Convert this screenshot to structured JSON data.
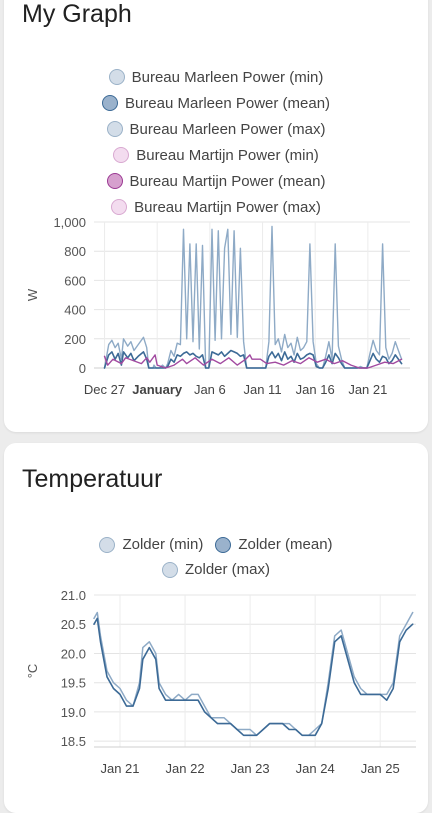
{
  "cards": [
    {
      "title": "My Graph",
      "legend": [
        {
          "label": "Bureau Marleen Power (min)",
          "fill": "#d3dde8",
          "stroke": "#9bb2c8"
        },
        {
          "label": "Bureau Marleen Power (mean)",
          "fill": "#9ab2cc",
          "stroke": "#3c6a96"
        },
        {
          "label": "Bureau Marleen Power (max)",
          "fill": "#d3dde8",
          "stroke": "#9bb2c8"
        },
        {
          "label": "Bureau Martijn Power (min)",
          "fill": "#f3dcef",
          "stroke": "#d9a9d1"
        },
        {
          "label": "Bureau Martijn Power (mean)",
          "fill": "#d6a0ce",
          "stroke": "#9b3a93"
        },
        {
          "label": "Bureau Martijn Power (max)",
          "fill": "#f3dcef",
          "stroke": "#d9a9d1"
        }
      ]
    },
    {
      "title": "Temperatuur",
      "legend": [
        {
          "label": "Zolder (min)",
          "fill": "#d3dde8",
          "stroke": "#9bb2c8"
        },
        {
          "label": "Zolder (mean)",
          "fill": "#9ab2cc",
          "stroke": "#3c6a96"
        },
        {
          "label": "Zolder (max)",
          "fill": "#d3dde8",
          "stroke": "#9bb2c8"
        }
      ]
    }
  ],
  "chart_data": [
    {
      "type": "line",
      "title": "My Graph",
      "xlabel": "",
      "ylabel": "W",
      "ylim": [
        0,
        1000
      ],
      "yticks": [
        0,
        200,
        400,
        600,
        800,
        1000
      ],
      "ytick_labels": [
        "0",
        "200",
        "400",
        "600",
        "800",
        "1,000"
      ],
      "xlim": [
        -1,
        29
      ],
      "xticks": [
        0,
        5,
        10,
        15,
        20,
        25
      ],
      "xtick_labels": [
        "Dec 27",
        "January",
        "Jan 6",
        "Jan 11",
        "Jan 16",
        "Jan 21"
      ],
      "xtick_bold": [
        false,
        true,
        false,
        false,
        false,
        false
      ],
      "grid": true,
      "series": [
        {
          "name": "Bureau Marleen Power (max)",
          "color": "#8eaac6",
          "width": 1.4,
          "x": [
            0,
            0.4,
            0.7,
            1.0,
            1.3,
            1.6,
            1.8,
            2.2,
            2.5,
            2.8,
            3.2,
            3.7,
            4.0,
            4.2,
            4.6,
            4.7,
            4.9,
            5.2,
            5.5,
            5.8,
            6.0,
            6.3,
            6.6,
            6.9,
            7.2,
            7.5,
            7.8,
            8.1,
            8.4,
            8.7,
            9.0,
            9.3,
            9.6,
            9.9,
            10.2,
            10.5,
            10.8,
            11.1,
            11.4,
            11.7,
            12.0,
            12.3,
            12.6,
            12.9,
            13.2,
            13.5,
            13.8,
            14.1,
            14.4,
            14.7,
            15.0,
            15.3,
            15.6,
            15.9,
            16.2,
            16.5,
            16.8,
            17.1,
            17.4,
            17.7,
            18.0,
            18.3,
            18.6,
            18.9,
            19.2,
            19.5,
            19.8,
            20.1,
            20.4,
            20.7,
            21.0,
            21.3,
            21.6,
            21.9,
            22.2,
            22.5,
            22.8,
            23.1,
            23.4,
            23.7,
            24.0,
            24.3,
            24.6,
            24.9,
            25.2,
            25.5,
            25.8,
            26.1,
            26.4,
            26.7,
            27.0,
            27.3,
            27.6,
            27.9,
            28.2
          ],
          "y": [
            0,
            160,
            190,
            140,
            170,
            60,
            200,
            150,
            180,
            120,
            160,
            210,
            140,
            0,
            0,
            20,
            0,
            0,
            20,
            0,
            30,
            120,
            80,
            170,
            160,
            950,
            200,
            850,
            180,
            850,
            130,
            840,
            0,
            0,
            950,
            190,
            940,
            200,
            820,
            950,
            230,
            940,
            210,
            820,
            180,
            0,
            0,
            0,
            0,
            0,
            0,
            0,
            180,
            970,
            160,
            200,
            110,
            230,
            140,
            170,
            90,
            210,
            120,
            140,
            180,
            850,
            180,
            30,
            0,
            0,
            80,
            180,
            60,
            850,
            150,
            60,
            0,
            0,
            0,
            0,
            0,
            10,
            0,
            0,
            100,
            190,
            120,
            90,
            850,
            140,
            60,
            100,
            180,
            120,
            60
          ]
        },
        {
          "name": "Bureau Marleen Power (mean)",
          "color": "#3c6a96",
          "width": 1.6,
          "x": [
            0,
            0.4,
            0.7,
            1.0,
            1.3,
            1.6,
            1.8,
            2.2,
            2.5,
            2.8,
            3.2,
            3.7,
            4.0,
            4.2,
            4.6,
            4.7,
            4.9,
            5.2,
            5.5,
            5.8,
            6.0,
            6.3,
            6.6,
            6.9,
            7.2,
            7.5,
            7.8,
            8.1,
            8.4,
            8.7,
            9.0,
            9.3,
            9.6,
            9.9,
            10.2,
            10.5,
            10.8,
            11.1,
            11.4,
            11.7,
            12.0,
            12.3,
            12.6,
            12.9,
            13.2,
            13.5,
            13.8,
            14.1,
            14.4,
            14.7,
            15.0,
            15.3,
            15.6,
            15.9,
            16.2,
            16.5,
            16.8,
            17.1,
            17.4,
            17.7,
            18.0,
            18.3,
            18.6,
            18.9,
            19.2,
            19.5,
            19.8,
            20.1,
            20.4,
            20.7,
            21.0,
            21.3,
            21.6,
            21.9,
            22.2,
            22.5,
            22.8,
            23.1,
            23.4,
            23.7,
            24.0,
            24.3,
            24.6,
            24.9,
            25.2,
            25.5,
            25.8,
            26.1,
            26.4,
            26.7,
            27.0,
            27.3,
            27.6,
            27.9,
            28.2
          ],
          "y": [
            0,
            90,
            110,
            60,
            100,
            20,
            110,
            70,
            100,
            50,
            80,
            110,
            60,
            0,
            0,
            0,
            0,
            0,
            0,
            0,
            10,
            60,
            40,
            90,
            80,
            100,
            110,
            90,
            100,
            80,
            70,
            90,
            0,
            0,
            110,
            100,
            90,
            110,
            80,
            100,
            120,
            110,
            100,
            80,
            90,
            0,
            0,
            0,
            0,
            0,
            0,
            0,
            80,
            110,
            70,
            100,
            50,
            110,
            60,
            80,
            40,
            100,
            60,
            70,
            90,
            100,
            90,
            10,
            0,
            0,
            40,
            90,
            30,
            100,
            70,
            30,
            0,
            0,
            0,
            0,
            0,
            0,
            0,
            0,
            50,
            100,
            60,
            40,
            80,
            70,
            30,
            50,
            90,
            60,
            30
          ]
        },
        {
          "name": "Bureau Martijn Power (mean)",
          "color": "#a24aa0",
          "width": 1.4,
          "x": [
            0,
            0.3,
            0.8,
            1.6,
            2.0,
            3.5,
            4.0,
            4.3,
            4.8,
            5.0,
            5.8,
            6.6,
            7.4,
            7.8,
            8.6,
            9.4,
            10.2,
            11.0,
            11.8,
            12.6,
            13.4,
            13.8,
            14.0,
            14.8,
            15.4,
            16.2,
            17.0,
            17.8,
            18.6,
            19.4,
            20.2,
            21.0,
            21.8,
            22.6,
            23.4,
            24.2,
            25.0,
            25.8,
            26.6,
            27.4,
            28.2
          ],
          "y": [
            80,
            20,
            60,
            30,
            70,
            30,
            70,
            40,
            90,
            20,
            0,
            20,
            60,
            30,
            70,
            20,
            60,
            30,
            70,
            20,
            60,
            90,
            60,
            60,
            30,
            40,
            20,
            50,
            30,
            70,
            40,
            60,
            30,
            50,
            20,
            0,
            0,
            20,
            40,
            30,
            60
          ]
        }
      ]
    },
    {
      "type": "line",
      "title": "Temperatuur",
      "xlabel": "",
      "ylabel": "°C",
      "ylim": [
        18.4,
        21.0
      ],
      "yticks": [
        18.5,
        19.0,
        19.5,
        20.0,
        20.5,
        21.0
      ],
      "ytick_labels": [
        "18.5",
        "19.0",
        "19.5",
        "20.0",
        "20.5",
        "21.0"
      ],
      "xlim": [
        20.6,
        25.55
      ],
      "xticks": [
        21,
        22,
        23,
        24,
        25
      ],
      "xtick_labels": [
        "Jan 21",
        "Jan 22",
        "Jan 23",
        "Jan 24",
        "Jan 25"
      ],
      "xtick_bold": [
        false,
        false,
        false,
        false,
        false
      ],
      "grid": true,
      "series": [
        {
          "name": "Zolder (max)",
          "color": "#8eaac6",
          "width": 1.5,
          "x": [
            20.6,
            20.65,
            20.7,
            20.8,
            20.9,
            21.0,
            21.1,
            21.2,
            21.3,
            21.35,
            21.45,
            21.55,
            21.6,
            21.7,
            21.8,
            21.9,
            22.0,
            22.1,
            22.2,
            22.3,
            22.4,
            22.5,
            22.6,
            22.7,
            22.8,
            22.9,
            23.0,
            23.1,
            23.2,
            23.3,
            23.4,
            23.5,
            23.6,
            23.7,
            23.8,
            23.9,
            24.0,
            24.1,
            24.2,
            24.3,
            24.4,
            24.5,
            24.6,
            24.7,
            24.8,
            24.9,
            25.0,
            25.1,
            25.2,
            25.3,
            25.4,
            25.5
          ],
          "y": [
            20.6,
            20.7,
            20.3,
            19.7,
            19.5,
            19.4,
            19.2,
            19.1,
            19.5,
            20.1,
            20.2,
            20.0,
            19.5,
            19.3,
            19.2,
            19.3,
            19.2,
            19.3,
            19.3,
            19.1,
            18.9,
            18.9,
            18.9,
            18.8,
            18.7,
            18.7,
            18.7,
            18.6,
            18.7,
            18.8,
            18.8,
            18.8,
            18.8,
            18.7,
            18.6,
            18.6,
            18.7,
            18.8,
            19.5,
            20.3,
            20.4,
            20.0,
            19.6,
            19.4,
            19.3,
            19.3,
            19.3,
            19.3,
            19.5,
            20.3,
            20.5,
            20.7
          ]
        },
        {
          "name": "Zolder (mean)",
          "color": "#3c6a96",
          "width": 1.6,
          "x": [
            20.6,
            20.65,
            20.7,
            20.8,
            20.9,
            21.0,
            21.1,
            21.2,
            21.3,
            21.35,
            21.45,
            21.55,
            21.6,
            21.7,
            21.8,
            21.9,
            22.0,
            22.1,
            22.2,
            22.3,
            22.4,
            22.5,
            22.6,
            22.7,
            22.8,
            22.9,
            23.0,
            23.1,
            23.2,
            23.3,
            23.4,
            23.5,
            23.6,
            23.7,
            23.8,
            23.9,
            24.0,
            24.1,
            24.2,
            24.3,
            24.4,
            24.5,
            24.6,
            24.7,
            24.8,
            24.9,
            25.0,
            25.1,
            25.2,
            25.3,
            25.4,
            25.5
          ],
          "y": [
            20.5,
            20.6,
            20.2,
            19.6,
            19.4,
            19.3,
            19.1,
            19.1,
            19.4,
            19.9,
            20.1,
            19.9,
            19.4,
            19.2,
            19.2,
            19.2,
            19.2,
            19.2,
            19.2,
            19.0,
            18.9,
            18.8,
            18.8,
            18.8,
            18.7,
            18.6,
            18.6,
            18.6,
            18.7,
            18.8,
            18.8,
            18.8,
            18.7,
            18.7,
            18.6,
            18.6,
            18.6,
            18.8,
            19.4,
            20.2,
            20.3,
            19.9,
            19.5,
            19.3,
            19.3,
            19.3,
            19.3,
            19.2,
            19.4,
            20.2,
            20.4,
            20.5
          ]
        }
      ]
    }
  ]
}
